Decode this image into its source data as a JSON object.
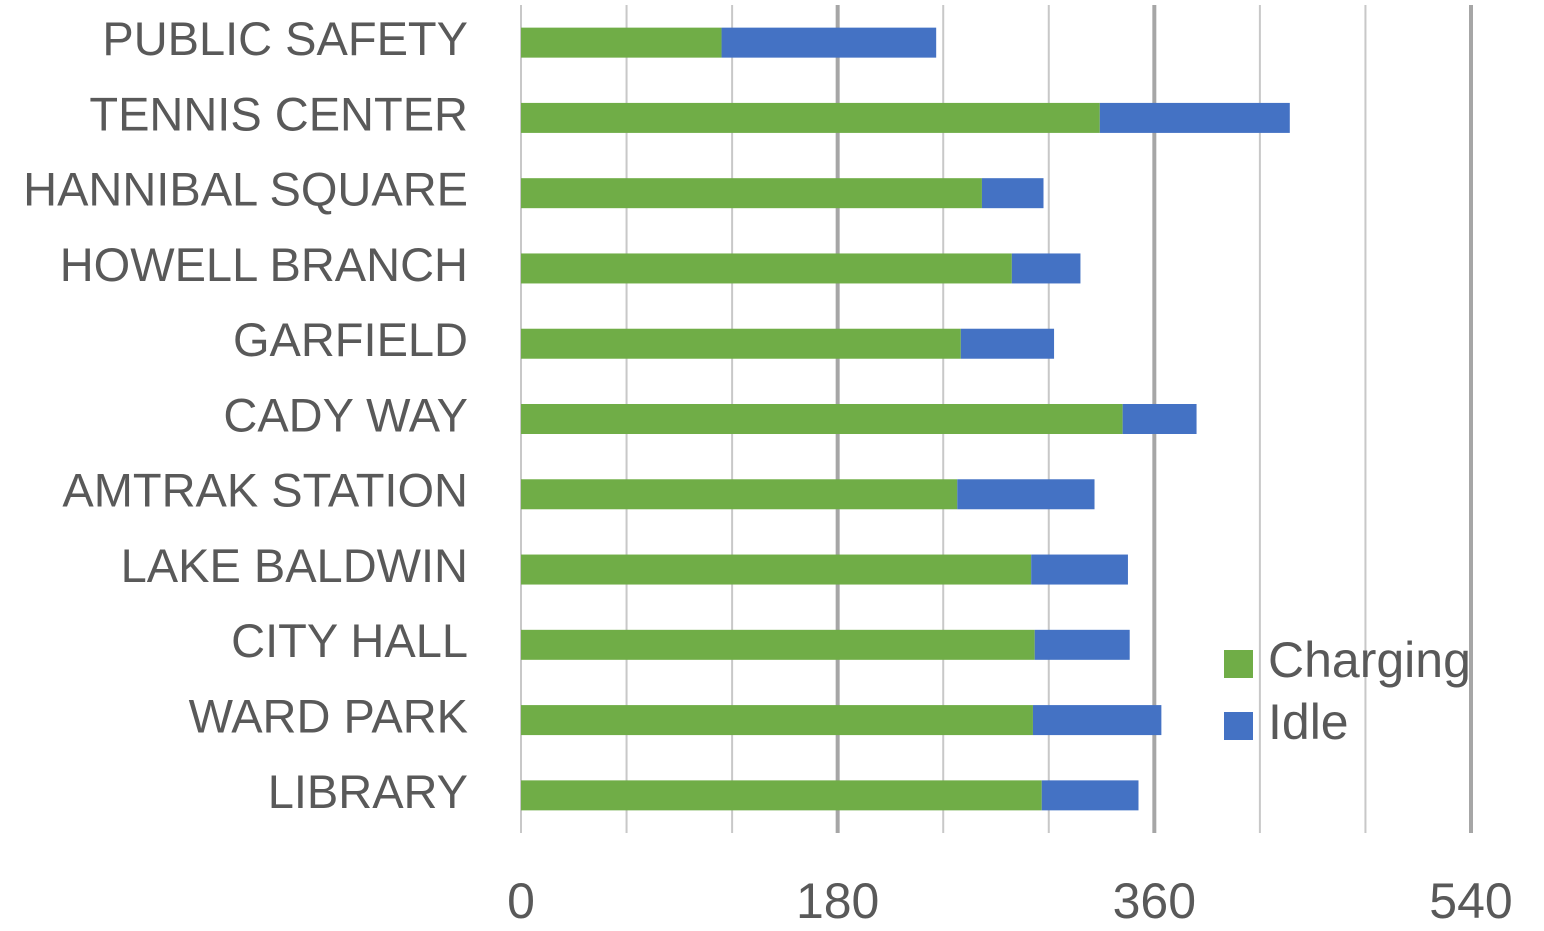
{
  "chart_data": {
    "type": "hbar_stacked",
    "categories": [
      "PUBLIC SAFETY",
      "TENNIS CENTER",
      "HANNIBAL SQUARE",
      "HOWELL BRANCH",
      "GARFIELD",
      "CADY WAY",
      "AMTRAK STATION",
      "LAKE BALDWIN",
      "CITY HALL",
      "WARD PARK",
      "LIBRARY"
    ],
    "series": [
      {
        "name": "Charging",
        "color": "#70ad47",
        "values": [
          114,
          329,
          262,
          279,
          250,
          342,
          248,
          290,
          292,
          291,
          296
        ]
      },
      {
        "name": "Idle",
        "color": "#4472c4",
        "values": [
          122,
          108,
          35,
          39,
          53,
          42,
          78,
          55,
          54,
          73,
          55
        ]
      }
    ],
    "xlim": [
      0,
      540
    ],
    "xticks": [
      0,
      180,
      360,
      540
    ],
    "x_minor_ticks": [
      60,
      120,
      240,
      300,
      420,
      480
    ],
    "grid": true,
    "legend": "lower-right"
  }
}
